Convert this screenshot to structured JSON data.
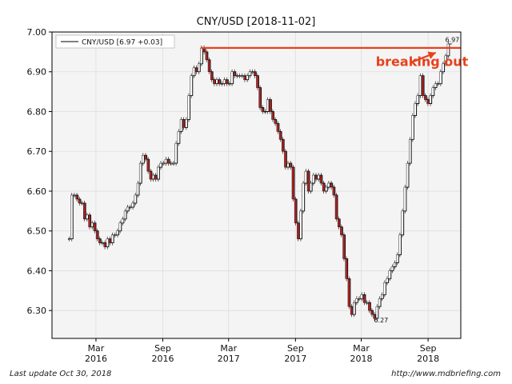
{
  "chart_data": {
    "type": "line",
    "title": "CNY/USD  [2018-11-02]",
    "xlabel": "",
    "ylabel": "",
    "legend": {
      "label": "CNY/USD [6.97 +0.03]",
      "placement": "top-left"
    },
    "ylim": [
      6.23,
      7.0
    ],
    "yticks": [
      6.3,
      6.4,
      6.5,
      6.6,
      6.7,
      6.8,
      6.9,
      7.0
    ],
    "ytick_labels": [
      "6.30",
      "6.40",
      "6.50",
      "6.60",
      "6.70",
      "6.80",
      "6.90",
      "7.00"
    ],
    "xlim": [
      "2015-11-01",
      "2018-11-30"
    ],
    "xticks": [
      {
        "date": "2016-03-01",
        "line1": "Mar",
        "line2": "2016"
      },
      {
        "date": "2016-09-01",
        "line1": "Sep",
        "line2": "2016"
      },
      {
        "date": "2017-03-01",
        "line1": "Mar",
        "line2": "2017"
      },
      {
        "date": "2017-09-01",
        "line1": "Sep",
        "line2": "2017"
      },
      {
        "date": "2018-03-01",
        "line1": "Mar",
        "line2": "2018"
      },
      {
        "date": "2018-09-01",
        "line1": "Sep",
        "line2": "2018"
      }
    ],
    "grid": true,
    "series": [
      {
        "name": "CNY/USD",
        "points": [
          [
            "2015-12-15",
            6.48
          ],
          [
            "2015-12-22",
            6.48
          ],
          [
            "2015-12-29",
            6.59
          ],
          [
            "2016-01-05",
            6.59
          ],
          [
            "2016-01-12",
            6.58
          ],
          [
            "2016-01-19",
            6.57
          ],
          [
            "2016-01-26",
            6.57
          ],
          [
            "2016-02-02",
            6.53
          ],
          [
            "2016-02-09",
            6.54
          ],
          [
            "2016-02-16",
            6.51
          ],
          [
            "2016-02-23",
            6.52
          ],
          [
            "2016-03-01",
            6.5
          ],
          [
            "2016-03-08",
            6.48
          ],
          [
            "2016-03-15",
            6.47
          ],
          [
            "2016-03-22",
            6.47
          ],
          [
            "2016-03-29",
            6.46
          ],
          [
            "2016-04-05",
            6.48
          ],
          [
            "2016-04-12",
            6.47
          ],
          [
            "2016-04-19",
            6.49
          ],
          [
            "2016-04-26",
            6.49
          ],
          [
            "2016-05-03",
            6.5
          ],
          [
            "2016-05-10",
            6.52
          ],
          [
            "2016-05-17",
            6.53
          ],
          [
            "2016-05-24",
            6.55
          ],
          [
            "2016-05-31",
            6.56
          ],
          [
            "2016-06-07",
            6.56
          ],
          [
            "2016-06-14",
            6.57
          ],
          [
            "2016-06-21",
            6.59
          ],
          [
            "2016-06-28",
            6.62
          ],
          [
            "2016-07-05",
            6.67
          ],
          [
            "2016-07-12",
            6.69
          ],
          [
            "2016-07-19",
            6.68
          ],
          [
            "2016-07-26",
            6.65
          ],
          [
            "2016-08-02",
            6.63
          ],
          [
            "2016-08-09",
            6.64
          ],
          [
            "2016-08-16",
            6.63
          ],
          [
            "2016-08-23",
            6.66
          ],
          [
            "2016-08-30",
            6.67
          ],
          [
            "2016-09-06",
            6.67
          ],
          [
            "2016-09-13",
            6.68
          ],
          [
            "2016-09-20",
            6.67
          ],
          [
            "2016-09-27",
            6.67
          ],
          [
            "2016-10-04",
            6.67
          ],
          [
            "2016-10-11",
            6.72
          ],
          [
            "2016-10-18",
            6.75
          ],
          [
            "2016-10-25",
            6.78
          ],
          [
            "2016-11-01",
            6.76
          ],
          [
            "2016-11-08",
            6.78
          ],
          [
            "2016-11-15",
            6.84
          ],
          [
            "2016-11-22",
            6.89
          ],
          [
            "2016-11-29",
            6.91
          ],
          [
            "2016-12-06",
            6.9
          ],
          [
            "2016-12-13",
            6.92
          ],
          [
            "2016-12-20",
            6.96
          ],
          [
            "2016-12-27",
            6.95
          ],
          [
            "2017-01-03",
            6.93
          ],
          [
            "2017-01-10",
            6.9
          ],
          [
            "2017-01-17",
            6.88
          ],
          [
            "2017-01-24",
            6.87
          ],
          [
            "2017-01-31",
            6.88
          ],
          [
            "2017-02-07",
            6.87
          ],
          [
            "2017-02-14",
            6.87
          ],
          [
            "2017-02-21",
            6.88
          ],
          [
            "2017-02-28",
            6.87
          ],
          [
            "2017-03-07",
            6.87
          ],
          [
            "2017-03-14",
            6.9
          ],
          [
            "2017-03-21",
            6.89
          ],
          [
            "2017-03-28",
            6.89
          ],
          [
            "2017-04-04",
            6.89
          ],
          [
            "2017-04-11",
            6.89
          ],
          [
            "2017-04-18",
            6.88
          ],
          [
            "2017-04-25",
            6.89
          ],
          [
            "2017-05-02",
            6.9
          ],
          [
            "2017-05-09",
            6.9
          ],
          [
            "2017-05-16",
            6.89
          ],
          [
            "2017-05-23",
            6.86
          ],
          [
            "2017-05-30",
            6.81
          ],
          [
            "2017-06-06",
            6.8
          ],
          [
            "2017-06-13",
            6.8
          ],
          [
            "2017-06-20",
            6.83
          ],
          [
            "2017-06-27",
            6.8
          ],
          [
            "2017-07-04",
            6.78
          ],
          [
            "2017-07-11",
            6.77
          ],
          [
            "2017-07-18",
            6.75
          ],
          [
            "2017-07-25",
            6.73
          ],
          [
            "2017-08-01",
            6.7
          ],
          [
            "2017-08-08",
            6.66
          ],
          [
            "2017-08-15",
            6.67
          ],
          [
            "2017-08-22",
            6.66
          ],
          [
            "2017-08-29",
            6.58
          ],
          [
            "2017-09-05",
            6.52
          ],
          [
            "2017-09-12",
            6.48
          ],
          [
            "2017-09-19",
            6.55
          ],
          [
            "2017-09-26",
            6.62
          ],
          [
            "2017-10-03",
            6.65
          ],
          [
            "2017-10-10",
            6.6
          ],
          [
            "2017-10-17",
            6.62
          ],
          [
            "2017-10-24",
            6.64
          ],
          [
            "2017-10-31",
            6.63
          ],
          [
            "2017-11-07",
            6.64
          ],
          [
            "2017-11-14",
            6.62
          ],
          [
            "2017-11-21",
            6.6
          ],
          [
            "2017-11-28",
            6.61
          ],
          [
            "2017-12-05",
            6.62
          ],
          [
            "2017-12-12",
            6.61
          ],
          [
            "2017-12-19",
            6.59
          ],
          [
            "2017-12-26",
            6.53
          ],
          [
            "2018-01-02",
            6.51
          ],
          [
            "2018-01-09",
            6.49
          ],
          [
            "2018-01-16",
            6.43
          ],
          [
            "2018-01-23",
            6.38
          ],
          [
            "2018-01-30",
            6.31
          ],
          [
            "2018-02-06",
            6.29
          ],
          [
            "2018-02-13",
            6.32
          ],
          [
            "2018-02-20",
            6.33
          ],
          [
            "2018-02-27",
            6.33
          ],
          [
            "2018-03-06",
            6.34
          ],
          [
            "2018-03-13",
            6.32
          ],
          [
            "2018-03-20",
            6.32
          ],
          [
            "2018-03-27",
            6.3
          ],
          [
            "2018-04-03",
            6.29
          ],
          [
            "2018-04-10",
            6.28
          ],
          [
            "2018-04-17",
            6.31
          ],
          [
            "2018-04-24",
            6.33
          ],
          [
            "2018-05-01",
            6.34
          ],
          [
            "2018-05-08",
            6.37
          ],
          [
            "2018-05-15",
            6.38
          ],
          [
            "2018-05-22",
            6.4
          ],
          [
            "2018-05-29",
            6.41
          ],
          [
            "2018-06-05",
            6.42
          ],
          [
            "2018-06-12",
            6.44
          ],
          [
            "2018-06-19",
            6.49
          ],
          [
            "2018-06-26",
            6.55
          ],
          [
            "2018-07-03",
            6.61
          ],
          [
            "2018-07-10",
            6.67
          ],
          [
            "2018-07-17",
            6.73
          ],
          [
            "2018-07-24",
            6.79
          ],
          [
            "2018-07-31",
            6.82
          ],
          [
            "2018-08-07",
            6.84
          ],
          [
            "2018-08-14",
            6.89
          ],
          [
            "2018-08-21",
            6.84
          ],
          [
            "2018-08-28",
            6.83
          ],
          [
            "2018-09-04",
            6.82
          ],
          [
            "2018-09-11",
            6.84
          ],
          [
            "2018-09-18",
            6.86
          ],
          [
            "2018-09-25",
            6.87
          ],
          [
            "2018-10-02",
            6.87
          ],
          [
            "2018-10-09",
            6.9
          ],
          [
            "2018-10-16",
            6.92
          ],
          [
            "2018-10-23",
            6.94
          ],
          [
            "2018-10-30",
            6.97
          ]
        ]
      }
    ],
    "resistance": {
      "value": 6.96,
      "from": "2016-12-15",
      "to": "2018-11-30",
      "color": "#e8401c"
    },
    "annotations": [
      {
        "text": "breaking out",
        "x": "2018-04-10",
        "y": 6.915,
        "color": "#e8401c"
      },
      {
        "text": "6.97",
        "x": "2018-10-18",
        "y": 6.975
      },
      {
        "text": "6.27",
        "x": "2018-04-05",
        "y": 6.27
      }
    ],
    "arrow": {
      "from": [
        "2018-07-20",
        6.925
      ],
      "to": [
        "2018-09-22",
        6.948
      ],
      "color": "#e8401c"
    }
  },
  "footer": {
    "last_update": "Last update Oct 30, 2018",
    "source": "http://www.mdbriefing.com"
  }
}
